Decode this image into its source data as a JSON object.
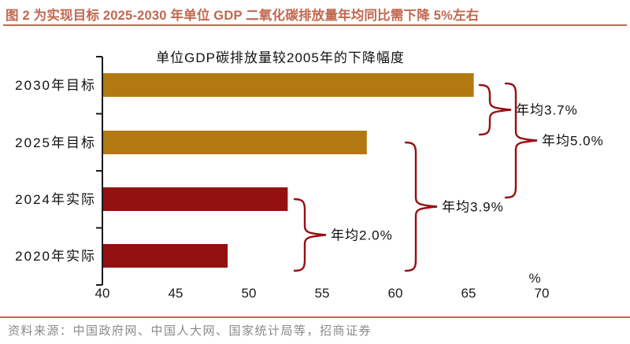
{
  "header": {
    "title": "图 2 为实现目标 2025-2030 年单位 GDP 二氧化碳排放量年均同比需下降 5%左右",
    "accent_color": "#C2674F"
  },
  "chart_data": {
    "type": "bar",
    "orientation": "horizontal",
    "title": "单位GDP碳排放量较2005年的下降幅度",
    "categories": [
      "2030年目标",
      "2025年目标",
      "2024年实际",
      "2020年实际"
    ],
    "values": [
      65.3,
      58.0,
      52.6,
      48.5
    ],
    "bar_colors": [
      "#B1790F",
      "#B1790F",
      "#941111",
      "#941111"
    ],
    "xlim": [
      40,
      70
    ],
    "xticks": [
      40,
      45,
      50,
      55,
      60,
      65,
      70
    ],
    "x_unit": "%",
    "grid": false,
    "legend": false,
    "brace_color": "#960F12",
    "annotations": [
      {
        "label": "年均3.7%",
        "from": "2025年目标",
        "to": "2030年目标"
      },
      {
        "label": "年均5.0%",
        "from": "2024年实际",
        "to": "2030年目标"
      },
      {
        "label": "年均3.9%",
        "from": "2020年实际",
        "to": "2025年目标"
      },
      {
        "label": "年均2.0%",
        "from": "2020年实际",
        "to": "2024年实际"
      }
    ]
  },
  "footer": {
    "source": "资料来源：中国政府网、中国人大网、国家统计局等，招商证券"
  }
}
